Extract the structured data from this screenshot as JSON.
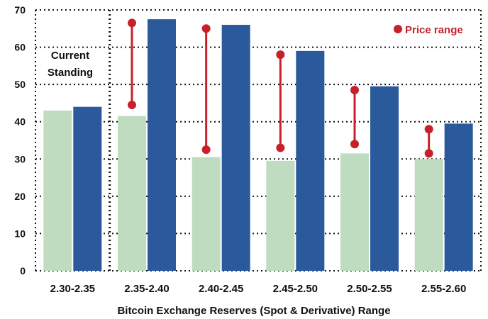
{
  "chart_data": {
    "type": "bar",
    "xlabel": "Bitcoin Exchange Reserves (Spot & Derivative) Range",
    "ylabel": "",
    "ylim": [
      0,
      70
    ],
    "yticks": [
      0,
      10,
      20,
      30,
      40,
      50,
      60,
      70
    ],
    "categories": [
      "2.30-2.35",
      "2.35-2.40",
      "2.40-2.45",
      "2.45-2.50",
      "2.50-2.55",
      "2.55-2.60"
    ],
    "series": [
      {
        "values": [
          43,
          41.5,
          30.5,
          29.5,
          31.5,
          30
        ],
        "color": "#bfdcc0"
      },
      {
        "values": [
          44,
          67.5,
          66,
          59,
          49.5,
          39.5
        ],
        "color": "#2a5a9c"
      }
    ],
    "price_range": {
      "name": "Price range",
      "color": "#c8202a",
      "ranges": [
        null,
        [
          44.5,
          66.5
        ],
        [
          32.5,
          65
        ],
        [
          33,
          58
        ],
        [
          34,
          48.5
        ],
        [
          31.5,
          38
        ]
      ]
    },
    "annotation": {
      "lines": [
        "Current",
        "Standing"
      ],
      "divider_after_category_index": 0
    },
    "grid": true,
    "grid_style": "dotted",
    "legend": "top-right"
  }
}
